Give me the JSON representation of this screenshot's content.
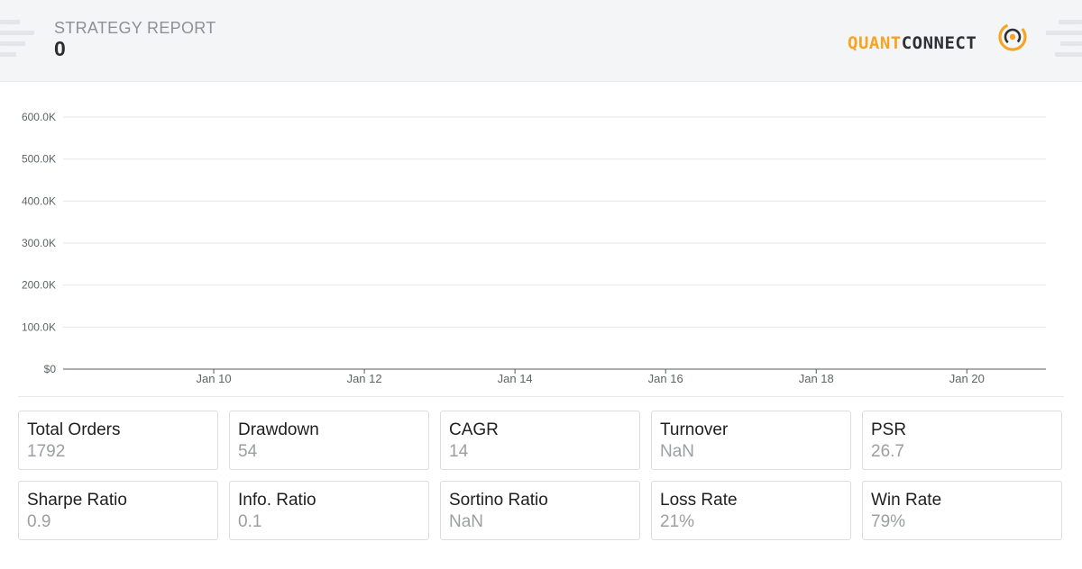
{
  "header": {
    "report_label": "STRATEGY REPORT",
    "report_value": "0",
    "logo": {
      "part1": "QUANT",
      "part2": "CONNECT",
      "icon": "quantconnect-logo-icon"
    }
  },
  "colors": {
    "accent": "#f5a523",
    "text_dark": "#2f3033",
    "muted": "#9c9ea3"
  },
  "chart_data": {
    "type": "line",
    "title": "",
    "xlabel": "",
    "ylabel": "",
    "y_ticks": [
      "$0",
      "100.0K",
      "200.0K",
      "300.0K",
      "400.0K",
      "500.0K",
      "600.0K"
    ],
    "ylim": [
      0,
      600000
    ],
    "x_ticks": [
      "Jan 10",
      "Jan 12",
      "Jan 14",
      "Jan 16",
      "Jan 18",
      "Jan 20"
    ],
    "x_domain": [
      "Jan 8",
      "Jan 21"
    ],
    "grid": true,
    "series": []
  },
  "stats": [
    {
      "label": "Total Orders",
      "value": "1792"
    },
    {
      "label": "Drawdown",
      "value": "54"
    },
    {
      "label": "CAGR",
      "value": "14"
    },
    {
      "label": "Turnover",
      "value": "NaN"
    },
    {
      "label": "PSR",
      "value": "26.7"
    },
    {
      "label": "Sharpe Ratio",
      "value": "0.9"
    },
    {
      "label": "Info. Ratio",
      "value": "0.1"
    },
    {
      "label": "Sortino Ratio",
      "value": "NaN"
    },
    {
      "label": "Loss Rate",
      "value": "21%"
    },
    {
      "label": "Win Rate",
      "value": "79%"
    }
  ]
}
